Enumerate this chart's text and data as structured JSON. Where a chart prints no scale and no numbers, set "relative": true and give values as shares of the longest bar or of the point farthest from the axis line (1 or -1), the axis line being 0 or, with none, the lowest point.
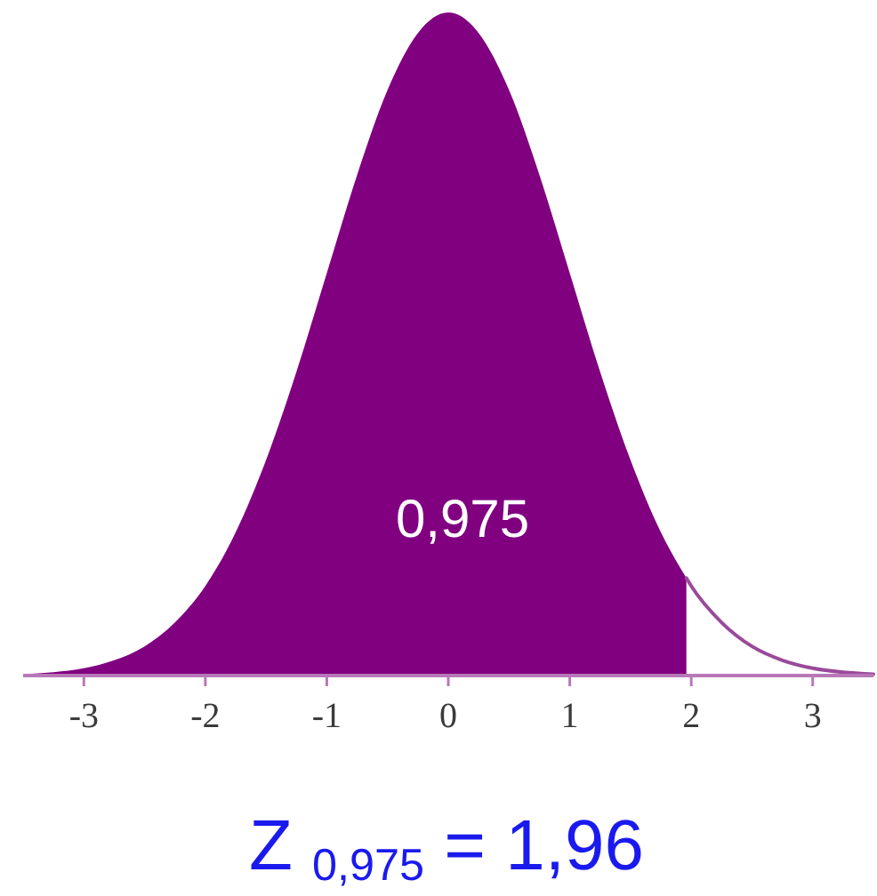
{
  "chart_data": {
    "type": "area",
    "relative": true,
    "xlim": [
      -3.5,
      3.5
    ],
    "xticks": [
      -3,
      -2,
      -1,
      0,
      1,
      2,
      3
    ],
    "series": [
      {
        "color": "#800080",
        "x": [
          -3.5,
          -3.25,
          -3,
          -2.75,
          -2.5,
          -2.25,
          -2,
          -1.75,
          -1.5,
          -1.25,
          -1,
          -0.75,
          -0.5,
          -0.25,
          0,
          0.25,
          0.5,
          0.75,
          1,
          1.25,
          1.5,
          1.75,
          1.96
        ],
        "values": [
          0.002,
          0.005,
          0.011,
          0.023,
          0.044,
          0.08,
          0.135,
          0.216,
          0.325,
          0.458,
          0.607,
          0.755,
          0.883,
          0.969,
          1,
          0.969,
          0.883,
          0.755,
          0.607,
          0.458,
          0.325,
          0.216,
          0.147
        ]
      },
      {
        "type": "line",
        "color": "#9a4a9a",
        "x": [
          1.96,
          2,
          2.25,
          2.5,
          2.75,
          3,
          3.25,
          3.5
        ],
        "values": [
          0.147,
          0.135,
          0.08,
          0.044,
          0.023,
          0.011,
          0.005,
          0.002
        ]
      }
    ],
    "annotations": [
      "0,975",
      "Z $_{0,975}$ = 1,96"
    ]
  }
}
